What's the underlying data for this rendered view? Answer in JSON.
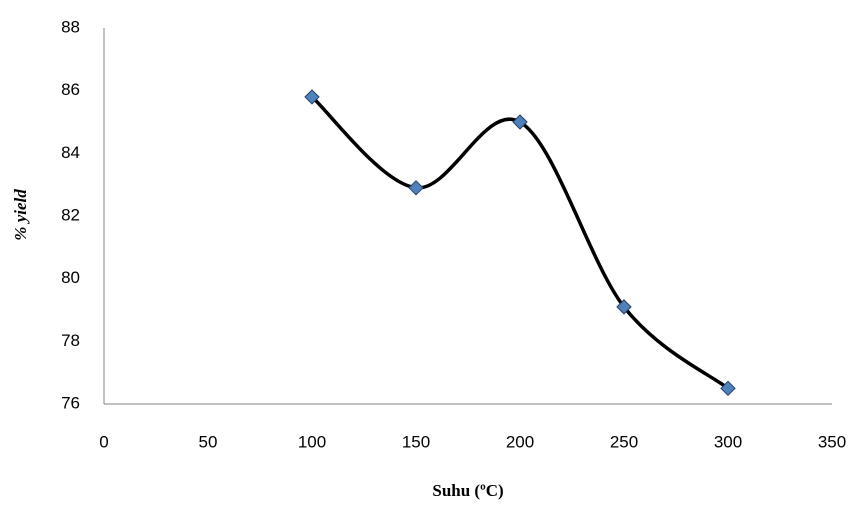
{
  "chart_data": {
    "type": "scatter",
    "x_label": "Suhu (ºC)",
    "y_label": "% yield",
    "x": [
      100,
      150,
      200,
      250,
      300
    ],
    "values": [
      85.8,
      82.9,
      85.0,
      79.1,
      76.5
    ],
    "color": "#4f81bd",
    "line_color": "#000000",
    "smooth": true,
    "xlim": [
      0,
      350
    ],
    "xticks": [
      0,
      50,
      100,
      150,
      200,
      250,
      300,
      350
    ],
    "ylim": [
      76,
      88
    ],
    "yticks": [
      76,
      78,
      80,
      82,
      84,
      86,
      88
    ],
    "grid": false
  }
}
